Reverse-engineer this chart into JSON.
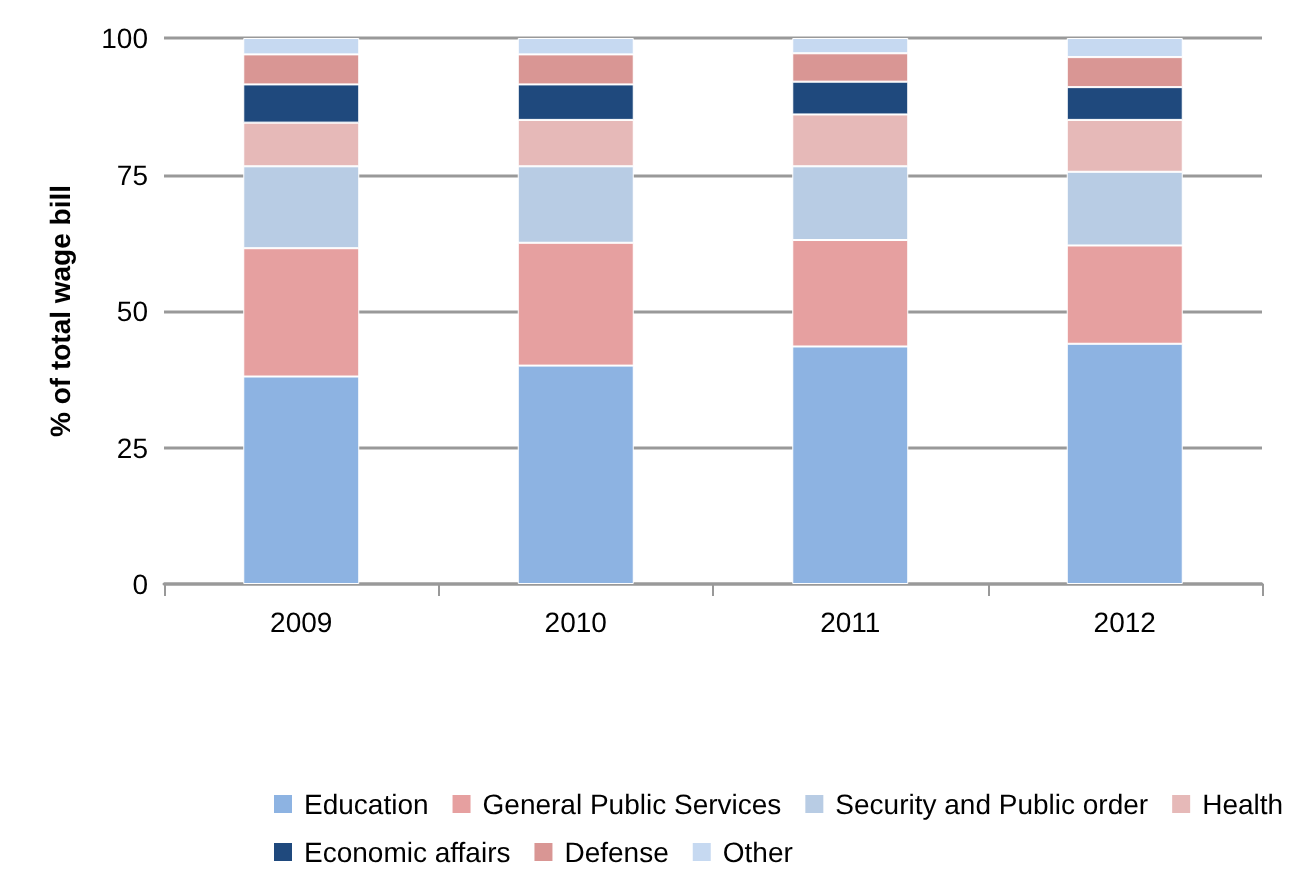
{
  "chart_data": {
    "type": "bar",
    "stacked": true,
    "ylabel": "% of total wage bill",
    "categories": [
      "2009",
      "2010",
      "2011",
      "2012"
    ],
    "series": [
      {
        "name": "Education",
        "color": "#8db3e2",
        "values": [
          38,
          40,
          43.5,
          44
        ]
      },
      {
        "name": "General Public Services",
        "color": "#e6a0a0",
        "values": [
          23.5,
          22.5,
          19.5,
          18
        ]
      },
      {
        "name": "Security and Public order",
        "color": "#b8cce4",
        "values": [
          15,
          14,
          13.5,
          13.5
        ]
      },
      {
        "name": "Health",
        "color": "#e6b9b8",
        "values": [
          8,
          8.5,
          9.5,
          9.5
        ]
      },
      {
        "name": "Economic affairs",
        "color": "#1f497d",
        "values": [
          7,
          6.5,
          6,
          6
        ]
      },
      {
        "name": "Defense",
        "color": "#d99694",
        "values": [
          5.5,
          5.5,
          5.2,
          5.5
        ]
      },
      {
        "name": "Other",
        "color": "#c6d9f1",
        "values": [
          3,
          3,
          2.8,
          3.5
        ]
      }
    ],
    "ylim": [
      0,
      100
    ],
    "yticks": [
      0,
      25,
      50,
      75,
      100
    ],
    "grid": "y",
    "legend": "bottom"
  }
}
